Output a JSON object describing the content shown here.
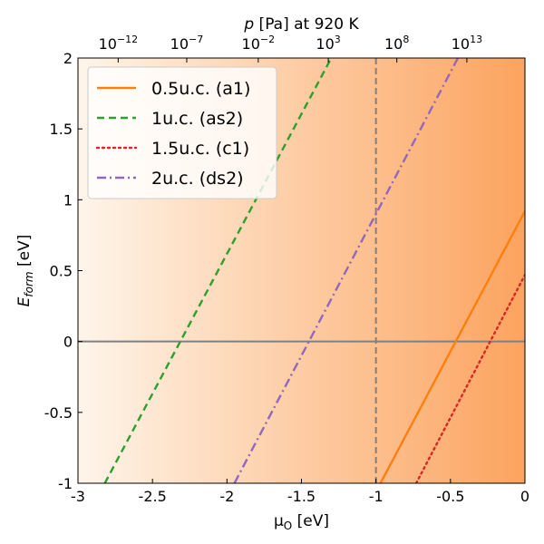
{
  "chart_data": {
    "type": "line",
    "xlabel": {
      "main": "μ",
      "sub": "O",
      "unit": " [eV]"
    },
    "ylabel": {
      "main": "E",
      "sub": "form",
      "unit": " [eV]"
    },
    "xlim": [
      -3,
      0
    ],
    "ylim": [
      -1,
      2
    ],
    "x_ticks": [
      {
        "value": -3,
        "label": "-3"
      },
      {
        "value": -2.5,
        "label": "-2.5"
      },
      {
        "value": -2,
        "label": "-2"
      },
      {
        "value": -1.5,
        "label": "-1.5"
      },
      {
        "value": -1,
        "label": "-1"
      },
      {
        "value": -0.5,
        "label": "-0.5"
      },
      {
        "value": 0,
        "label": "0"
      }
    ],
    "y_ticks": [
      {
        "value": -1,
        "label": "-1"
      },
      {
        "value": -0.5,
        "label": "-0.5"
      },
      {
        "value": 0,
        "label": "0"
      },
      {
        "value": 0.5,
        "label": "0.5"
      },
      {
        "value": 1,
        "label": "1"
      },
      {
        "value": 1.5,
        "label": "1.5"
      },
      {
        "value": 2,
        "label": "2"
      }
    ],
    "top_axis": {
      "label": {
        "p": "p",
        "rest": " [Pa] at 920 K"
      },
      "ticks": [
        {
          "value": -2.73,
          "base": "10",
          "exp": "−12"
        },
        {
          "value": -2.27,
          "base": "10",
          "exp": "−7"
        },
        {
          "value": -1.79,
          "base": "10",
          "exp": "−2"
        },
        {
          "value": -1.32,
          "base": "10",
          "exp": "3"
        },
        {
          "value": -0.86,
          "base": "10",
          "exp": "8"
        },
        {
          "value": -0.39,
          "base": "10",
          "exp": "13"
        }
      ]
    },
    "hline": {
      "y": 0,
      "color": "#808080"
    },
    "vline": {
      "x": -1,
      "color": "#808080"
    },
    "background_gradient": {
      "from": "#fef5ea",
      "to": "#fca35e"
    },
    "series": [
      {
        "name": "0.5u.c. (a1)",
        "color": "#ff7f0e",
        "dash": "solid",
        "x": [
          -0.97,
          0.0
        ],
        "y": [
          -1.0,
          0.92
        ]
      },
      {
        "name": "1u.c. (as2)",
        "color": "#2ca02c",
        "dash": "dashed",
        "x": [
          -2.82,
          -1.3
        ],
        "y": [
          -1.0,
          2.0
        ]
      },
      {
        "name": "1.5u.c. (c1)",
        "color": "#d62728",
        "dash": "dotted",
        "x": [
          -0.73,
          0.0
        ],
        "y": [
          -1.0,
          0.47
        ]
      },
      {
        "name": "2u.c. (ds2)",
        "color": "#9467bd",
        "dash": "dashdot",
        "x": [
          -1.95,
          -0.45
        ],
        "y": [
          -1.0,
          2.0
        ]
      }
    ]
  }
}
